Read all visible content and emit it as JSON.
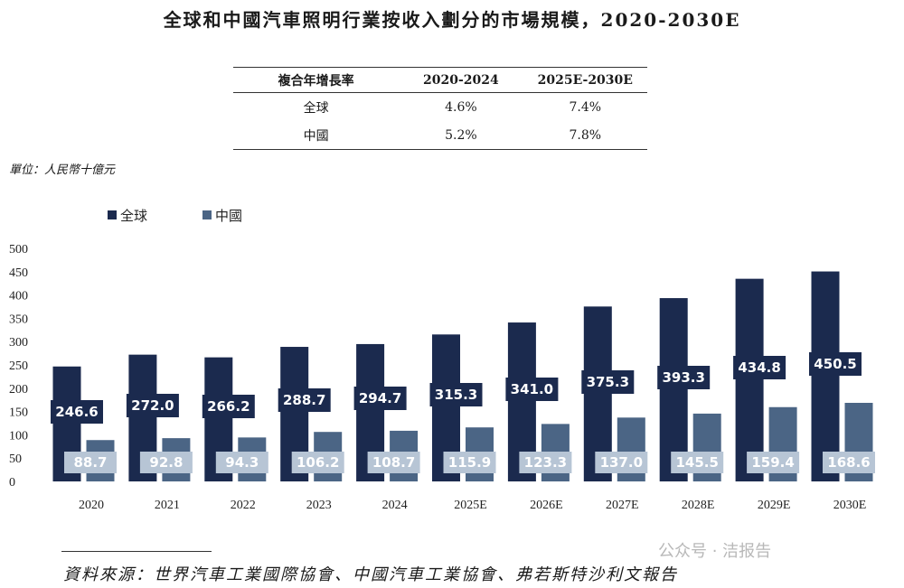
{
  "title": "全球和中國汽車照明行業按收入劃分的市場規模，2020-2030E",
  "cagr_table": {
    "headers": [
      "複合年增長率",
      "2020-2024",
      "2025E-2030E"
    ],
    "rows": [
      [
        "全球",
        "4.6%",
        "7.4%"
      ],
      [
        "中國",
        "5.2%",
        "7.8%"
      ]
    ]
  },
  "unit_label": "單位：人民幣十億元",
  "source": "資料來源：世界汽車工業國際協會、中國汽車工業協會、弗若斯特沙利文報告",
  "watermark": "公众号 · 洁报告",
  "colors": {
    "global_bar": "#1b2a4e",
    "china_bar": "#4b6585",
    "global_label_bg": "#1b2a4e",
    "china_label_bg": "#b7c5d5"
  },
  "chart_data": {
    "type": "bar",
    "categories": [
      "2020",
      "2021",
      "2022",
      "2023",
      "2024",
      "2025E",
      "2026E",
      "2027E",
      "2028E",
      "2029E",
      "2030E"
    ],
    "series": [
      {
        "name": "全球",
        "values": [
          246.6,
          272.0,
          266.2,
          288.7,
          294.7,
          315.3,
          341.0,
          375.3,
          393.3,
          434.8,
          450.5
        ]
      },
      {
        "name": "中國",
        "values": [
          88.7,
          92.8,
          94.3,
          106.2,
          108.7,
          115.9,
          123.3,
          137.0,
          145.5,
          159.4,
          168.6
        ]
      }
    ],
    "ylim": [
      0,
      500
    ],
    "yticks": [
      0,
      50,
      100,
      150,
      200,
      250,
      300,
      350,
      400,
      450,
      500
    ],
    "legend": "top-left",
    "grid": false
  }
}
